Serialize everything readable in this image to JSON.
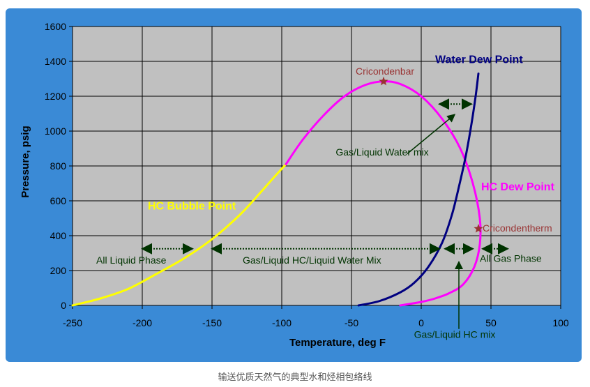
{
  "caption": "输送优质天然气的典型水和烃相包络线",
  "colors": {
    "frame": "#3a8ad6",
    "plot_bg": "#c0c0c0",
    "bubble": "#ffff00",
    "dew": "#ff00ff",
    "water": "#000080",
    "annotation": "#003300",
    "star": "#993333"
  },
  "chart_data": {
    "type": "line",
    "xlabel": "Temperature, deg F",
    "ylabel": "Pressure, psig",
    "xlim": [
      -250,
      100
    ],
    "ylim": [
      0,
      1600
    ],
    "xticks": [
      -250,
      -200,
      -150,
      -100,
      -50,
      0,
      50,
      100
    ],
    "yticks": [
      0,
      200,
      400,
      600,
      800,
      1000,
      1200,
      1400,
      1600
    ],
    "grid": true,
    "series": [
      {
        "name": "HC Bubble Point",
        "color": "#ffff00",
        "x": [
          -250,
          -230,
          -210,
          -190,
          -170,
          -150,
          -130,
          -115,
          -105,
          -97
        ],
        "y": [
          0,
          40,
          95,
          180,
          270,
          380,
          520,
          650,
          740,
          810
        ]
      },
      {
        "name": "HC Dew Point",
        "color": "#ff00ff",
        "x": [
          -97,
          -85,
          -70,
          -55,
          -40,
          -27,
          -15,
          0,
          15,
          28,
          37,
          42,
          42,
          38,
          30,
          20,
          10,
          0,
          -15
        ],
        "y": [
          810,
          950,
          1090,
          1200,
          1265,
          1285,
          1270,
          1200,
          1070,
          900,
          700,
          500,
          350,
          220,
          120,
          70,
          40,
          20,
          0
        ]
      },
      {
        "name": "Water Dew Point",
        "color": "#000080",
        "x": [
          -45,
          -30,
          -15,
          -5,
          5,
          15,
          22,
          27,
          32,
          36,
          39,
          41
        ],
        "y": [
          0,
          25,
          75,
          130,
          220,
          360,
          520,
          680,
          860,
          1040,
          1200,
          1330
        ]
      }
    ],
    "points": [
      {
        "name": "Cricondenbar",
        "x": -27,
        "y": 1285
      },
      {
        "name": "Cricondentherm",
        "x": 41,
        "y": 440
      }
    ],
    "annotations": [
      {
        "text": "Water Dew Point",
        "x": 10,
        "y": 1390
      },
      {
        "text": "HC Dew Point",
        "x": 43,
        "y": 660
      },
      {
        "text": "HC Bubble Point",
        "x": -196,
        "y": 550
      },
      {
        "text": "Gas/Liquid Water mix",
        "x": -28,
        "y": 860
      },
      {
        "text": "All Liquid Phase",
        "x": -233,
        "y": 240
      },
      {
        "text": "Gas/Liquid HC/Liquid Water Mix",
        "x": -128,
        "y": 240
      },
      {
        "text": "All Gas Phase",
        "x": 42,
        "y": 250
      },
      {
        "text": "Gas/Liquid HC mix",
        "x": 24,
        "y": -185
      }
    ]
  }
}
